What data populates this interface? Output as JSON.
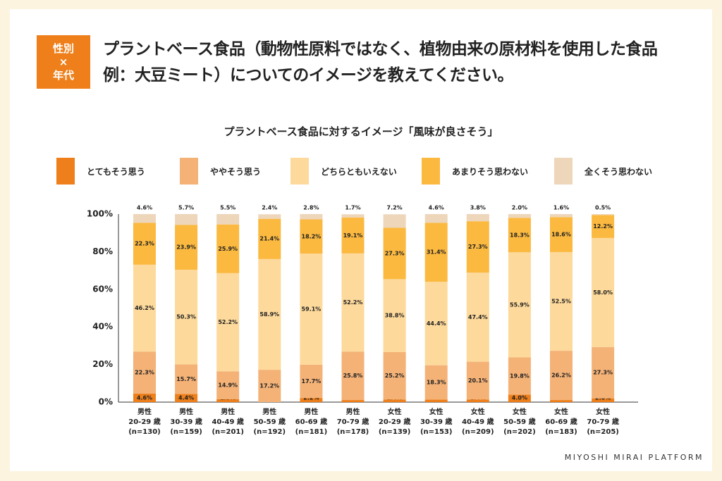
{
  "tag": {
    "line1": "性別",
    "line2": "×",
    "line3": "年代"
  },
  "heading": {
    "line1": "プラントベース食品（動物性原料ではなく、植物由来の原材料を使用した食品",
    "line2": "例：大豆ミート）についてのイメージを教えてください。"
  },
  "footer": "MIYOSHI MIRAI PLATFORM",
  "chart_data": {
    "type": "bar",
    "stacked": true,
    "title": "プラントベース食品に対するイメージ「風味が良さそう」",
    "ylim": [
      0,
      100
    ],
    "yticks": [
      "0%",
      "20%",
      "40%",
      "60%",
      "80%",
      "100%"
    ],
    "grid": false,
    "legend_position": "top",
    "categories": [
      {
        "gender": "男性",
        "age": "20-29 歳",
        "n": "(n=130)"
      },
      {
        "gender": "男性",
        "age": "30-39 歳",
        "n": "(n=159)"
      },
      {
        "gender": "男性",
        "age": "40-49 歳",
        "n": "(n=201)"
      },
      {
        "gender": "男性",
        "age": "50-59 歳",
        "n": "(n=192)"
      },
      {
        "gender": "男性",
        "age": "60-69 歳",
        "n": "(n=181)"
      },
      {
        "gender": "男性",
        "age": "70-79 歳",
        "n": "(n=178)"
      },
      {
        "gender": "女性",
        "age": "20-29 歳",
        "n": "(n=139)"
      },
      {
        "gender": "女性",
        "age": "30-39 歳",
        "n": "(n=153)"
      },
      {
        "gender": "女性",
        "age": "40-49 歳",
        "n": "(n=209)"
      },
      {
        "gender": "女性",
        "age": "50-59 歳",
        "n": "(n=202)"
      },
      {
        "gender": "女性",
        "age": "60-69 歳",
        "n": "(n=183)"
      },
      {
        "gender": "女性",
        "age": "70-79 歳",
        "n": "(n=205)"
      }
    ],
    "series": [
      {
        "name": "とてもそう思う",
        "color": "#EE7F1A",
        "values": [
          4.6,
          4.4,
          1.5,
          0,
          2.2,
          1.1,
          1.4,
          1.3,
          1.4,
          4.0,
          1.1,
          2.0
        ],
        "labels": [
          "4.6%",
          "4.4%",
          "1.5%",
          "",
          "2.2%",
          "1.1%",
          "1.4%",
          "1.3%",
          "1.4%",
          "4.0%",
          "1.1%",
          "2.0%"
        ]
      },
      {
        "name": "ややそう思う",
        "color": "#F4B277",
        "values": [
          22.3,
          15.7,
          14.9,
          17.2,
          17.7,
          25.8,
          25.2,
          18.3,
          20.1,
          19.8,
          26.2,
          27.3
        ],
        "labels": [
          "22.3%",
          "15.7%",
          "14.9%",
          "17.2%",
          "17.7%",
          "25.8%",
          "25.2%",
          "18.3%",
          "20.1%",
          "19.8%",
          "26.2%",
          "27.3%"
        ]
      },
      {
        "name": "どちらともいえない",
        "color": "#FDD99B",
        "values": [
          46.2,
          50.3,
          52.2,
          58.9,
          59.1,
          52.2,
          38.8,
          44.4,
          47.4,
          55.9,
          52.5,
          58.0
        ],
        "labels": [
          "46.2%",
          "50.3%",
          "52.2%",
          "58.9%",
          "59.1%",
          "52.2%",
          "38.8%",
          "44.4%",
          "47.4%",
          "55.9%",
          "52.5%",
          "58.0%"
        ]
      },
      {
        "name": "あまりそう思わない",
        "color": "#FBB940",
        "values": [
          22.3,
          23.9,
          25.9,
          21.4,
          18.2,
          19.1,
          27.3,
          31.4,
          27.3,
          18.3,
          18.6,
          12.2
        ],
        "labels": [
          "22.3%",
          "23.9%",
          "25.9%",
          "21.4%",
          "18.2%",
          "19.1%",
          "27.3%",
          "31.4%",
          "27.3%",
          "18.3%",
          "18.6%",
          "12.2%"
        ]
      },
      {
        "name": "全くそう思わない",
        "color": "#EDD6BA",
        "values": [
          4.6,
          5.7,
          5.5,
          2.4,
          2.8,
          1.7,
          7.2,
          4.6,
          3.8,
          2.0,
          1.6,
          0.5
        ],
        "labels": [
          "4.6%",
          "5.7%",
          "5.5%",
          "2.4%",
          "2.8%",
          "1.7%",
          "7.2%",
          "4.6%",
          "3.8%",
          "2.0%",
          "1.6%",
          "0.5%"
        ]
      }
    ]
  }
}
